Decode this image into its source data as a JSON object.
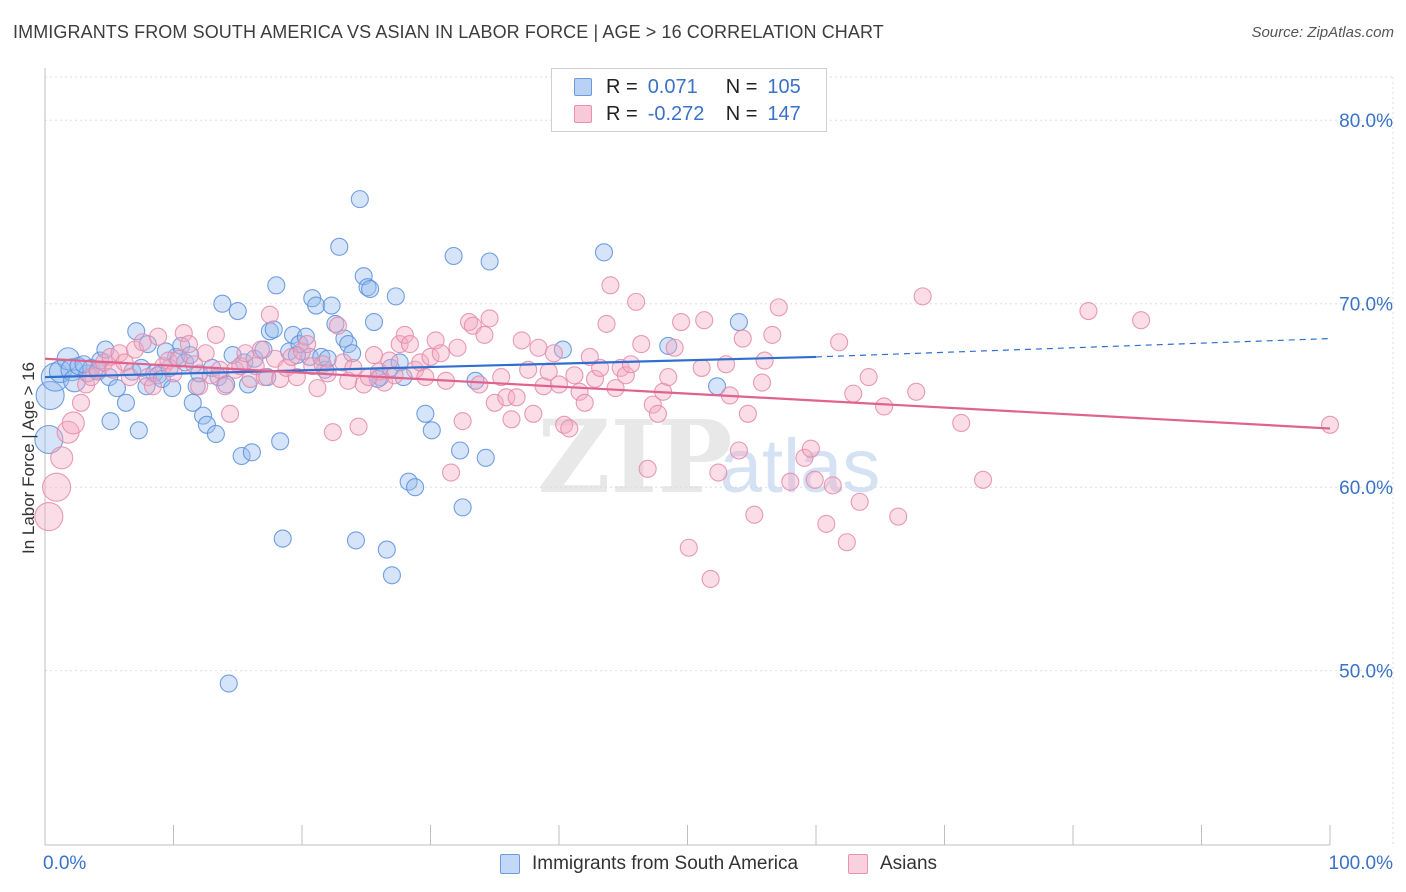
{
  "header": {
    "title": "IMMIGRANTS FROM SOUTH AMERICA VS ASIAN IN LABOR FORCE | AGE > 16 CORRELATION CHART",
    "source": "Source: ZipAtlas.com"
  },
  "legend": {
    "rows": [
      {
        "r_label": "R =",
        "r_value": "0.071",
        "n_label": "N =",
        "n_value": "105",
        "color": "#6a9be0",
        "fill": "#b9d2f4"
      },
      {
        "r_label": "R =",
        "r_value": "-0.272",
        "n_label": "N =",
        "n_value": "147",
        "color": "#e792b0",
        "fill": "#f8c9d8"
      }
    ]
  },
  "bottom_legend": {
    "items": [
      {
        "label": "Immigrants from South America",
        "color": "#6a9be0",
        "fill": "#c3d8f6"
      },
      {
        "label": "Asians",
        "color": "#e792b0",
        "fill": "#f9d0de"
      }
    ]
  },
  "watermark": {
    "zip": "ZIP",
    "atlas": "atlas"
  },
  "chart_data": {
    "type": "scatter",
    "title": "IMMIGRANTS FROM SOUTH AMERICA VS ASIAN IN LABOR FORCE | AGE > 16 CORRELATION CHART",
    "xlabel": "",
    "ylabel": "In Labor Force | Age > 16",
    "xlim": [
      0,
      100
    ],
    "ylim": [
      40.5,
      83.5
    ],
    "x_tick_labels": [
      "0.0%",
      "100.0%"
    ],
    "y_ticks": [
      50,
      60,
      70,
      80
    ],
    "y_tick_labels": [
      "50.0%",
      "60.0%",
      "70.0%",
      "80.0%"
    ],
    "grid": true,
    "series": [
      {
        "name": "Immigrants from South America",
        "color": "#5b8fdd",
        "fill": "rgba(150,188,238,0.40)",
        "r": 0.071,
        "n": 105,
        "trend": {
          "x0": 0,
          "y0": 66.0,
          "x1": 60,
          "y1": 67.1,
          "dash_to_x": 100,
          "dash_to_y": 68.1
        },
        "points": [
          [
            0.3,
            62.6
          ],
          [
            0.4,
            65.0
          ],
          [
            0.8,
            66.0
          ],
          [
            1.2,
            66.3
          ],
          [
            1.8,
            67.0
          ],
          [
            2.1,
            66.4
          ],
          [
            2.3,
            65.8
          ],
          [
            2.6,
            66.6
          ],
          [
            3.3,
            66.2
          ],
          [
            3.6,
            66.5
          ],
          [
            4.1,
            66.3
          ],
          [
            4.3,
            66.9
          ],
          [
            4.7,
            67.5
          ],
          [
            5.0,
            66.0
          ],
          [
            5.1,
            63.6
          ],
          [
            5.6,
            65.4
          ],
          [
            6.3,
            64.6
          ],
          [
            6.8,
            66.3
          ],
          [
            7.1,
            68.5
          ],
          [
            7.3,
            63.1
          ],
          [
            7.5,
            66.5
          ],
          [
            7.9,
            65.5
          ],
          [
            8.0,
            67.8
          ],
          [
            8.5,
            66.2
          ],
          [
            8.8,
            66.1
          ],
          [
            9.1,
            65.9
          ],
          [
            9.7,
            66.5
          ],
          [
            9.9,
            65.4
          ],
          [
            10.2,
            67.1
          ],
          [
            10.6,
            67.7
          ],
          [
            10.9,
            66.8
          ],
          [
            11.3,
            67.2
          ],
          [
            11.5,
            64.6
          ],
          [
            11.8,
            65.5
          ],
          [
            12.0,
            66.2
          ],
          [
            12.3,
            63.9
          ],
          [
            12.6,
            63.4
          ],
          [
            13.0,
            66.5
          ],
          [
            13.3,
            62.9
          ],
          [
            13.5,
            66.0
          ],
          [
            13.8,
            70.0
          ],
          [
            14.1,
            65.6
          ],
          [
            14.3,
            49.3
          ],
          [
            14.6,
            67.2
          ],
          [
            15.0,
            69.6
          ],
          [
            15.3,
            61.7
          ],
          [
            15.5,
            66.8
          ],
          [
            15.8,
            65.6
          ],
          [
            16.1,
            61.9
          ],
          [
            16.3,
            67.0
          ],
          [
            17.0,
            67.5
          ],
          [
            17.3,
            66.0
          ],
          [
            17.5,
            68.5
          ],
          [
            17.8,
            68.6
          ],
          [
            18.0,
            71.0
          ],
          [
            18.3,
            62.5
          ],
          [
            18.5,
            57.2
          ],
          [
            19.0,
            67.4
          ],
          [
            19.3,
            68.3
          ],
          [
            19.8,
            67.8
          ],
          [
            20.3,
            68.2
          ],
          [
            20.6,
            67.1
          ],
          [
            20.8,
            70.3
          ],
          [
            21.1,
            69.9
          ],
          [
            21.5,
            67.1
          ],
          [
            21.8,
            66.4
          ],
          [
            22.0,
            67.0
          ],
          [
            22.3,
            69.9
          ],
          [
            22.6,
            68.9
          ],
          [
            22.9,
            73.1
          ],
          [
            23.3,
            68.1
          ],
          [
            23.6,
            67.8
          ],
          [
            23.9,
            67.3
          ],
          [
            24.2,
            57.1
          ],
          [
            24.5,
            75.7
          ],
          [
            24.8,
            71.5
          ],
          [
            25.1,
            70.9
          ],
          [
            25.3,
            70.8
          ],
          [
            25.6,
            69.0
          ],
          [
            26.1,
            66.0
          ],
          [
            26.6,
            56.6
          ],
          [
            26.9,
            66.5
          ],
          [
            27.0,
            55.2
          ],
          [
            27.3,
            70.4
          ],
          [
            27.6,
            66.8
          ],
          [
            27.9,
            66.0
          ],
          [
            28.3,
            60.3
          ],
          [
            28.8,
            60.0
          ],
          [
            29.6,
            64.0
          ],
          [
            30.1,
            63.1
          ],
          [
            31.8,
            72.6
          ],
          [
            32.3,
            62.0
          ],
          [
            32.5,
            58.9
          ],
          [
            33.5,
            65.8
          ],
          [
            34.3,
            61.6
          ],
          [
            34.6,
            72.3
          ],
          [
            40.3,
            67.5
          ],
          [
            43.5,
            72.8
          ],
          [
            48.5,
            67.7
          ],
          [
            52.3,
            65.5
          ],
          [
            54.0,
            69.0
          ],
          [
            3.0,
            66.7
          ],
          [
            9.4,
            67.4
          ],
          [
            19.6,
            67.2
          ],
          [
            25.9,
            65.9
          ]
        ]
      },
      {
        "name": "Asians",
        "color": "#e48aaa",
        "fill": "rgba(245,170,196,0.40)",
        "r": -0.272,
        "n": 147,
        "trend": {
          "x0": 0,
          "y0": 67.0,
          "x1": 100,
          "y1": 63.2
        },
        "points": [
          [
            0.3,
            58.4
          ],
          [
            0.9,
            60.0
          ],
          [
            1.3,
            61.6
          ],
          [
            1.8,
            63.0
          ],
          [
            2.2,
            63.5
          ],
          [
            2.8,
            64.6
          ],
          [
            3.2,
            65.6
          ],
          [
            3.6,
            66.0
          ],
          [
            4.1,
            66.4
          ],
          [
            4.6,
            66.8
          ],
          [
            5.1,
            67.1
          ],
          [
            5.3,
            66.4
          ],
          [
            5.8,
            67.3
          ],
          [
            6.2,
            66.8
          ],
          [
            6.6,
            66.0
          ],
          [
            7.0,
            67.5
          ],
          [
            7.6,
            67.9
          ],
          [
            8.0,
            66.0
          ],
          [
            8.4,
            65.5
          ],
          [
            8.8,
            68.2
          ],
          [
            9.2,
            66.6
          ],
          [
            9.6,
            66.9
          ],
          [
            10.0,
            66.2
          ],
          [
            10.4,
            67.0
          ],
          [
            10.8,
            68.4
          ],
          [
            11.2,
            67.8
          ],
          [
            11.6,
            66.7
          ],
          [
            12.0,
            65.5
          ],
          [
            12.5,
            67.3
          ],
          [
            12.9,
            66.1
          ],
          [
            13.3,
            68.3
          ],
          [
            13.6,
            66.4
          ],
          [
            14.0,
            65.5
          ],
          [
            14.4,
            64.0
          ],
          [
            14.8,
            66.4
          ],
          [
            15.2,
            66.6
          ],
          [
            15.6,
            67.3
          ],
          [
            16.0,
            65.9
          ],
          [
            16.4,
            66.6
          ],
          [
            16.8,
            67.5
          ],
          [
            17.1,
            66.0
          ],
          [
            17.5,
            69.4
          ],
          [
            17.9,
            67.0
          ],
          [
            18.3,
            65.9
          ],
          [
            18.8,
            66.5
          ],
          [
            19.2,
            67.1
          ],
          [
            19.6,
            66.0
          ],
          [
            20.0,
            67.4
          ],
          [
            20.4,
            67.8
          ],
          [
            20.8,
            66.6
          ],
          [
            21.2,
            65.4
          ],
          [
            21.6,
            66.7
          ],
          [
            22.0,
            66.2
          ],
          [
            22.4,
            63.0
          ],
          [
            22.8,
            68.8
          ],
          [
            23.2,
            66.8
          ],
          [
            23.6,
            65.8
          ],
          [
            24.0,
            66.5
          ],
          [
            24.4,
            63.3
          ],
          [
            24.8,
            65.6
          ],
          [
            25.2,
            66.0
          ],
          [
            25.6,
            67.2
          ],
          [
            26.0,
            66.3
          ],
          [
            26.4,
            65.7
          ],
          [
            26.8,
            66.9
          ],
          [
            27.2,
            66.1
          ],
          [
            27.6,
            67.8
          ],
          [
            28.0,
            68.3
          ],
          [
            28.4,
            67.8
          ],
          [
            28.8,
            66.4
          ],
          [
            29.2,
            66.8
          ],
          [
            29.6,
            66.0
          ],
          [
            30.0,
            67.1
          ],
          [
            30.4,
            68.0
          ],
          [
            30.8,
            67.3
          ],
          [
            31.2,
            65.8
          ],
          [
            31.6,
            60.8
          ],
          [
            32.1,
            67.6
          ],
          [
            32.5,
            63.6
          ],
          [
            33.0,
            69.0
          ],
          [
            33.3,
            68.8
          ],
          [
            33.8,
            65.6
          ],
          [
            34.2,
            68.3
          ],
          [
            34.6,
            69.2
          ],
          [
            35.0,
            64.6
          ],
          [
            35.5,
            66.0
          ],
          [
            35.9,
            64.9
          ],
          [
            36.3,
            63.7
          ],
          [
            36.7,
            64.9
          ],
          [
            37.1,
            68.0
          ],
          [
            37.6,
            66.4
          ],
          [
            38.0,
            64.0
          ],
          [
            38.4,
            67.6
          ],
          [
            38.8,
            65.5
          ],
          [
            39.2,
            66.3
          ],
          [
            39.6,
            67.3
          ],
          [
            40.0,
            65.6
          ],
          [
            40.4,
            63.4
          ],
          [
            40.8,
            63.2
          ],
          [
            41.2,
            66.1
          ],
          [
            41.6,
            65.2
          ],
          [
            42.0,
            64.6
          ],
          [
            42.4,
            67.1
          ],
          [
            42.8,
            65.9
          ],
          [
            43.2,
            66.5
          ],
          [
            43.7,
            68.9
          ],
          [
            44.0,
            71.0
          ],
          [
            44.4,
            65.4
          ],
          [
            44.8,
            66.5
          ],
          [
            45.2,
            66.1
          ],
          [
            45.6,
            66.7
          ],
          [
            46.0,
            70.1
          ],
          [
            46.4,
            67.8
          ],
          [
            46.9,
            61.0
          ],
          [
            47.3,
            64.5
          ],
          [
            47.7,
            64.0
          ],
          [
            48.1,
            65.2
          ],
          [
            48.5,
            66.0
          ],
          [
            49.0,
            67.6
          ],
          [
            49.5,
            69.0
          ],
          [
            50.1,
            56.7
          ],
          [
            51.1,
            66.5
          ],
          [
            51.3,
            69.1
          ],
          [
            51.8,
            55.0
          ],
          [
            52.4,
            60.8
          ],
          [
            53.0,
            66.7
          ],
          [
            53.3,
            65.0
          ],
          [
            54.0,
            62.0
          ],
          [
            54.3,
            68.1
          ],
          [
            54.7,
            64.0
          ],
          [
            55.2,
            58.5
          ],
          [
            55.8,
            65.7
          ],
          [
            56.0,
            66.9
          ],
          [
            56.6,
            68.3
          ],
          [
            57.1,
            69.8
          ],
          [
            58.0,
            60.3
          ],
          [
            59.1,
            61.6
          ],
          [
            59.6,
            62.1
          ],
          [
            59.9,
            60.4
          ],
          [
            60.8,
            58.0
          ],
          [
            61.3,
            60.1
          ],
          [
            61.8,
            67.9
          ],
          [
            62.4,
            57.0
          ],
          [
            62.9,
            65.1
          ],
          [
            63.4,
            59.2
          ],
          [
            64.1,
            66.0
          ],
          [
            65.3,
            64.4
          ],
          [
            66.4,
            58.4
          ],
          [
            68.3,
            70.4
          ],
          [
            71.3,
            63.5
          ],
          [
            73.0,
            60.4
          ],
          [
            81.2,
            69.6
          ],
          [
            85.3,
            69.1
          ],
          [
            67.8,
            65.2
          ],
          [
            100.0,
            63.4
          ]
        ]
      }
    ]
  }
}
